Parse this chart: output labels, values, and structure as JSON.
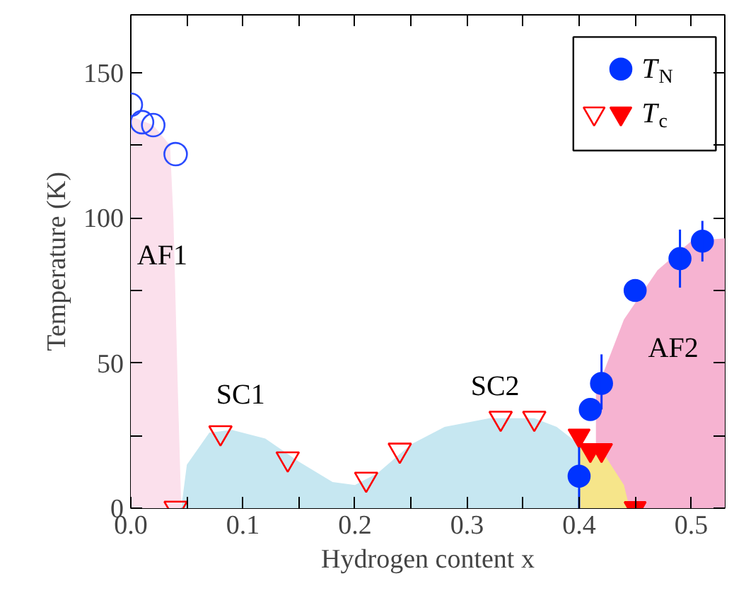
{
  "chart_data": {
    "type": "scatter",
    "xlabel": "Hydrogen content x",
    "ylabel": "Temperature (K)",
    "xlim": [
      0,
      0.53
    ],
    "ylim": [
      0,
      170
    ],
    "xticks": [
      {
        "value": 0,
        "label": "0.0"
      },
      {
        "value": 0.05,
        "label": null
      },
      0.1,
      {
        "value": 0.15,
        "label": null
      },
      0.2,
      {
        "value": 0.25,
        "label": null
      },
      0.3,
      {
        "value": 0.35,
        "label": null
      },
      0.4,
      {
        "value": 0.45,
        "label": null
      },
      0.5
    ],
    "yticks": [
      0,
      {
        "value": 25,
        "label": null
      },
      50,
      {
        "value": 75,
        "label": null
      },
      100,
      {
        "value": 125,
        "label": null
      },
      150
    ],
    "legend": "top right",
    "grid": false,
    "annotations": [
      "AF1",
      "SC1",
      "SC2",
      "AF2"
    ],
    "series": [
      {
        "type": "area",
        "color": "#fbe0ec",
        "x": [
          0,
          0.02,
          0.035,
          0.038,
          0.042,
          0.045
        ],
        "values": [
          135,
          132,
          125,
          100,
          40,
          0
        ]
      },
      {
        "type": "area",
        "color": "#f6b3d1",
        "x": [
          0.415,
          0.44,
          0.47,
          0.5,
          0.53
        ],
        "values": [
          40,
          65,
          82,
          92,
          93
        ]
      },
      {
        "type": "area",
        "color": "#c6e7f1",
        "x": [
          0.045,
          0.05,
          0.07,
          0.09,
          0.12,
          0.15,
          0.18,
          0.2,
          0.22,
          0.25,
          0.28,
          0.32,
          0.36,
          0.38,
          0.4,
          0.4
        ],
        "values": [
          0,
          15,
          26,
          27,
          24,
          16,
          9,
          8,
          12,
          22,
          28,
          31,
          31,
          28,
          22,
          0
        ]
      },
      {
        "type": "area",
        "color": "#f6e58a",
        "x": [
          0.4,
          0.42,
          0.44,
          0.445
        ],
        "values": [
          22,
          20,
          8,
          0
        ]
      },
      {
        "marker": "circle",
        "color": "#2a4bff",
        "x": [
          0,
          0.01,
          0.02,
          0.04
        ],
        "values": [
          139,
          133,
          132,
          122
        ]
      },
      {
        "marker": "circle",
        "name": "T$_{N}$",
        "color": "#0033ff",
        "x": [
          0.4,
          0.41,
          0.42,
          0.45,
          0.49,
          0.51
        ],
        "values": [
          11,
          34,
          43,
          75,
          86,
          92
        ],
        "errors": [
          [
            0,
            21
          ],
          null,
          [
            34,
            53
          ],
          null,
          [
            76,
            96
          ],
          [
            85,
            99
          ]
        ]
      },
      {
        "marker": "triangle",
        "color": "#ff0000",
        "x": [
          0.04,
          0.08,
          0.14,
          0.21,
          0.24,
          0.33,
          0.36
        ],
        "values": [
          0,
          26,
          17,
          10,
          20,
          31,
          31
        ]
      },
      {
        "marker": "triangle",
        "name": "T$_{c}$",
        "color": "#ff0000",
        "x": [
          0.4,
          0.41,
          0.42,
          0.45
        ],
        "values": [
          25,
          20,
          20,
          0
        ]
      }
    ]
  }
}
